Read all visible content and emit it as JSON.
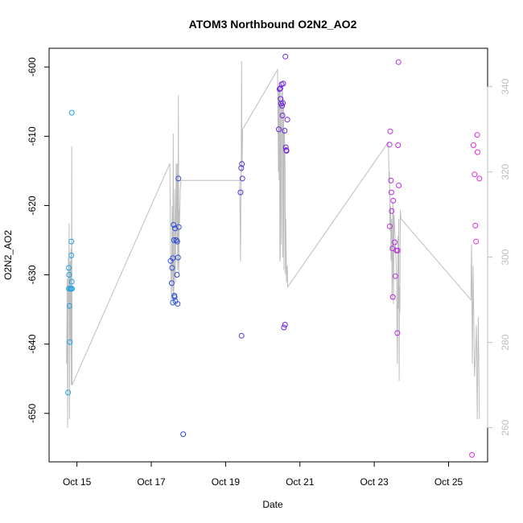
{
  "chart_data": {
    "type": "scatter",
    "title": "ATOM3 Northbound O2N2_AO2",
    "xlabel": "Date",
    "ylabel": "O2N2_AO2",
    "x_unit": "days (October)",
    "xlim": [
      14.25,
      26.05
    ],
    "ylim": [
      -657.0,
      -597.3
    ],
    "x_ticks": [
      {
        "value": 15,
        "label": "Oct 15"
      },
      {
        "value": 17,
        "label": "Oct 17"
      },
      {
        "value": 19,
        "label": "Oct 19"
      },
      {
        "value": 21,
        "label": "Oct 21"
      },
      {
        "value": 23,
        "label": "Oct 23"
      },
      {
        "value": 25,
        "label": "Oct 25"
      }
    ],
    "y_ticks": [
      -650,
      -640,
      -630,
      -620,
      -610,
      -600
    ],
    "y2lim": [
      252.0,
      349.0
    ],
    "y2_ticks": [
      260,
      280,
      300,
      320,
      340
    ],
    "y2_color": "#bdbdbd",
    "grid": false,
    "point_color_scale": [
      "#1ea5e8",
      "#2a4fd8",
      "#6a22dc",
      "#b22ae2",
      "#e42ed8"
    ],
    "series": [
      {
        "points": [
          [
            14.76,
            -647.0
          ],
          [
            14.78,
            -629.0
          ],
          [
            14.78,
            -632.0
          ],
          [
            14.79,
            -630.0
          ],
          [
            14.8,
            -634.5
          ],
          [
            14.81,
            -639.7
          ],
          [
            14.82,
            -632.0
          ],
          [
            14.84,
            -632.0
          ],
          [
            14.85,
            -625.2
          ],
          [
            14.85,
            -627.2
          ],
          [
            14.86,
            -631.0
          ],
          [
            14.86,
            -606.6
          ],
          [
            14.87,
            -632.0
          ],
          [
            17.52,
            -628.0
          ],
          [
            17.55,
            -631.2
          ],
          [
            17.56,
            -629.0
          ],
          [
            17.58,
            -634.0
          ],
          [
            17.58,
            -627.6
          ],
          [
            17.6,
            -622.8
          ],
          [
            17.61,
            -625.0
          ],
          [
            17.62,
            -633.0
          ],
          [
            17.63,
            -633.2
          ],
          [
            17.64,
            -623.3
          ],
          [
            17.65,
            -633.8
          ],
          [
            17.67,
            -625.0
          ],
          [
            17.69,
            -630.0
          ],
          [
            17.7,
            -625.2
          ],
          [
            17.71,
            -634.2
          ],
          [
            17.72,
            -627.5
          ],
          [
            17.73,
            -616.1
          ],
          [
            17.74,
            -623.1
          ],
          [
            17.86,
            -653.0
          ],
          [
            19.4,
            -618.1
          ],
          [
            19.42,
            -614.6
          ],
          [
            19.43,
            -638.8
          ],
          [
            19.44,
            -614.0
          ],
          [
            19.45,
            -616.1
          ],
          [
            20.43,
            -609.0
          ],
          [
            20.45,
            -603.2
          ],
          [
            20.47,
            -603.1
          ],
          [
            20.48,
            -604.6
          ],
          [
            20.49,
            -605.3
          ],
          [
            20.51,
            -602.5
          ],
          [
            20.52,
            -605.6
          ],
          [
            20.53,
            -607.0
          ],
          [
            20.54,
            -605.2
          ],
          [
            20.55,
            -602.4
          ],
          [
            20.57,
            -637.6
          ],
          [
            20.59,
            -609.2
          ],
          [
            20.6,
            -637.2
          ],
          [
            20.61,
            -598.5
          ],
          [
            20.62,
            -611.6
          ],
          [
            20.63,
            -612.0
          ],
          [
            20.64,
            -612.1
          ],
          [
            20.66,
            -607.6
          ],
          [
            23.41,
            -611.2
          ],
          [
            23.42,
            -623.0
          ],
          [
            23.43,
            -609.3
          ],
          [
            23.45,
            -616.4
          ],
          [
            23.46,
            -618.1
          ],
          [
            23.47,
            -620.8
          ],
          [
            23.49,
            -626.2
          ],
          [
            23.5,
            -633.2
          ],
          [
            23.51,
            -619.3
          ],
          [
            23.55,
            -625.3
          ],
          [
            23.57,
            -630.2
          ],
          [
            23.6,
            -626.5
          ],
          [
            23.62,
            -638.4
          ],
          [
            23.64,
            -611.3
          ],
          [
            23.65,
            -599.3
          ],
          [
            23.66,
            -617.1
          ],
          [
            23.63,
            -626.5
          ],
          [
            25.63,
            -656.0
          ],
          [
            25.67,
            -611.3
          ],
          [
            25.7,
            -615.5
          ],
          [
            25.72,
            -622.9
          ],
          [
            25.74,
            -625.2
          ],
          [
            25.77,
            -609.8
          ],
          [
            25.78,
            -612.3
          ],
          [
            25.83,
            -616.1
          ]
        ]
      },
      {
        "axis": "right",
        "style": "line",
        "color": "#bdbdbd",
        "points": [
          [
            14.72,
            275.0
          ],
          [
            14.74,
            295.0
          ],
          [
            14.75,
            260.0
          ],
          [
            14.76,
            280.0
          ],
          [
            14.77,
            300.0
          ],
          [
            14.78,
            288.0
          ],
          [
            14.79,
            308.0
          ],
          [
            14.8,
            262.0
          ],
          [
            14.81,
            294.0
          ],
          [
            14.82,
            299.0
          ],
          [
            14.83,
            280.0
          ],
          [
            14.84,
            302.0
          ],
          [
            14.85,
            270.0
          ],
          [
            14.86,
            326.0
          ],
          [
            14.87,
            270.0
          ],
          [
            17.5,
            322.0
          ],
          [
            17.52,
            300.0
          ],
          [
            17.54,
            290.0
          ],
          [
            17.55,
            297.0
          ],
          [
            17.56,
            312.0
          ],
          [
            17.58,
            292.0
          ],
          [
            17.59,
            329.0
          ],
          [
            17.6,
            290.0
          ],
          [
            17.62,
            296.0
          ],
          [
            17.63,
            316.0
          ],
          [
            17.65,
            294.0
          ],
          [
            17.67,
            322.0
          ],
          [
            17.69,
            304.0
          ],
          [
            17.7,
            322.0
          ],
          [
            17.71,
            297.0
          ],
          [
            17.72,
            300.0
          ],
          [
            17.73,
            338.0
          ],
          [
            17.74,
            296.0
          ],
          [
            17.75,
            311.0
          ],
          [
            17.76,
            308.0
          ],
          [
            17.78,
            316.0
          ],
          [
            17.8,
            318.0
          ],
          [
            19.38,
            318.0
          ],
          [
            19.4,
            299.0
          ],
          [
            19.41,
            313.0
          ],
          [
            19.42,
            320.0
          ],
          [
            19.43,
            346.0
          ],
          [
            19.44,
            320.0
          ],
          [
            19.46,
            330.0
          ],
          [
            20.4,
            344.0
          ],
          [
            20.42,
            320.0
          ],
          [
            20.43,
            340.0
          ],
          [
            20.44,
            318.0
          ],
          [
            20.45,
            341.0
          ],
          [
            20.46,
            299.0
          ],
          [
            20.47,
            300.0
          ],
          [
            20.48,
            340.0
          ],
          [
            20.5,
            303.0
          ],
          [
            20.51,
            336.0
          ],
          [
            20.53,
            341.0
          ],
          [
            20.54,
            300.0
          ],
          [
            20.56,
            337.0
          ],
          [
            20.57,
            297.0
          ],
          [
            20.58,
            330.0
          ],
          [
            20.6,
            322.0
          ],
          [
            20.61,
            296.0
          ],
          [
            20.62,
            309.0
          ],
          [
            20.64,
            294.0
          ],
          [
            20.65,
            297.0
          ],
          [
            20.66,
            298.0
          ],
          [
            20.67,
            293.0
          ],
          [
            23.38,
            327.0
          ],
          [
            23.4,
            318.0
          ],
          [
            23.41,
            320.0
          ],
          [
            23.42,
            310.0
          ],
          [
            23.43,
            306.0
          ],
          [
            23.44,
            312.0
          ],
          [
            23.45,
            300.0
          ],
          [
            23.46,
            299.0
          ],
          [
            23.47,
            309.0
          ],
          [
            23.48,
            290.0
          ],
          [
            23.49,
            296.0
          ],
          [
            23.5,
            313.0
          ],
          [
            23.51,
            310.0
          ],
          [
            23.52,
            289.0
          ],
          [
            23.53,
            310.0
          ],
          [
            23.55,
            307.0
          ],
          [
            23.57,
            303.0
          ],
          [
            23.6,
            296.0
          ],
          [
            23.62,
            275.0
          ],
          [
            23.64,
            305.0
          ],
          [
            23.65,
            288.0
          ],
          [
            23.66,
            309.0
          ],
          [
            23.67,
            271.0
          ],
          [
            23.68,
            293.0
          ],
          [
            23.69,
            287.0
          ],
          [
            23.7,
            311.0
          ],
          [
            23.72,
            309.0
          ],
          [
            25.6,
            290.0
          ],
          [
            25.62,
            303.0
          ],
          [
            25.64,
            275.0
          ],
          [
            25.66,
            298.0
          ],
          [
            25.7,
            272.0
          ],
          [
            25.73,
            278.0
          ],
          [
            25.75,
            284.0
          ],
          [
            25.77,
            262.0
          ],
          [
            25.8,
            286.0
          ],
          [
            25.83,
            262.0
          ]
        ]
      }
    ]
  }
}
